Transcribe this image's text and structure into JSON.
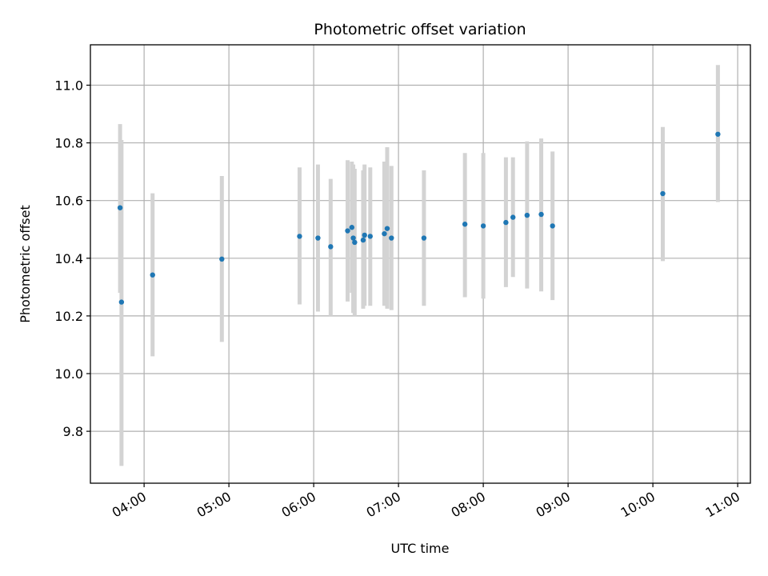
{
  "chart_data": {
    "type": "scatter",
    "title": "Photometric offset variation",
    "xlabel": "UTC time",
    "ylabel": "Photometric offset",
    "x_unit": "hours UTC",
    "xlim": [
      "03:22",
      "11:09"
    ],
    "ylim": [
      9.62,
      11.14
    ],
    "x_ticks": [
      {
        "t": "04:00",
        "label": "04:00"
      },
      {
        "t": "05:00",
        "label": "05:00"
      },
      {
        "t": "06:00",
        "label": "06:00"
      },
      {
        "t": "07:00",
        "label": "07:00"
      },
      {
        "t": "08:00",
        "label": "08:00"
      },
      {
        "t": "09:00",
        "label": "09:00"
      },
      {
        "t": "10:00",
        "label": "10:00"
      },
      {
        "t": "11:00",
        "label": "11:00"
      }
    ],
    "y_ticks": [
      {
        "v": 9.8,
        "label": "9.8"
      },
      {
        "v": 10.0,
        "label": "10.0"
      },
      {
        "v": 10.2,
        "label": "10.2"
      },
      {
        "v": 10.4,
        "label": "10.4"
      },
      {
        "v": 10.6,
        "label": "10.6"
      },
      {
        "v": 10.8,
        "label": "10.8"
      },
      {
        "v": 11.0,
        "label": "11.0"
      }
    ],
    "grid": true,
    "colors": {
      "point": "#1f77b4",
      "errorbar": "#d3d3d3",
      "grid": "#b0b0b0"
    },
    "points": [
      {
        "t": "03:43",
        "y": 10.575,
        "lo": 10.28,
        "hi": 10.865
      },
      {
        "t": "03:44",
        "y": 10.248,
        "lo": 9.68,
        "hi": 10.81
      },
      {
        "t": "04:06",
        "y": 10.342,
        "lo": 10.06,
        "hi": 10.625
      },
      {
        "t": "04:55",
        "y": 10.397,
        "lo": 10.11,
        "hi": 10.685
      },
      {
        "t": "05:50",
        "y": 10.476,
        "lo": 10.24,
        "hi": 10.715
      },
      {
        "t": "06:03",
        "y": 10.47,
        "lo": 10.215,
        "hi": 10.725
      },
      {
        "t": "06:12",
        "y": 10.44,
        "lo": 10.2,
        "hi": 10.675
      },
      {
        "t": "06:24",
        "y": 10.495,
        "lo": 10.25,
        "hi": 10.74
      },
      {
        "t": "06:27",
        "y": 10.507,
        "lo": 10.28,
        "hi": 10.735
      },
      {
        "t": "06:28",
        "y": 10.47,
        "lo": 10.21,
        "hi": 10.725
      },
      {
        "t": "06:29",
        "y": 10.455,
        "lo": 10.2,
        "hi": 10.71
      },
      {
        "t": "06:35",
        "y": 10.463,
        "lo": 10.225,
        "hi": 10.705
      },
      {
        "t": "06:36",
        "y": 10.48,
        "lo": 10.235,
        "hi": 10.725
      },
      {
        "t": "06:40",
        "y": 10.476,
        "lo": 10.235,
        "hi": 10.715
      },
      {
        "t": "06:50",
        "y": 10.485,
        "lo": 10.235,
        "hi": 10.735
      },
      {
        "t": "06:52",
        "y": 10.503,
        "lo": 10.225,
        "hi": 10.785
      },
      {
        "t": "06:55",
        "y": 10.47,
        "lo": 10.22,
        "hi": 10.72
      },
      {
        "t": "07:18",
        "y": 10.47,
        "lo": 10.235,
        "hi": 10.705
      },
      {
        "t": "07:47",
        "y": 10.518,
        "lo": 10.265,
        "hi": 10.765
      },
      {
        "t": "08:00",
        "y": 10.512,
        "lo": 10.26,
        "hi": 10.765
      },
      {
        "t": "08:16",
        "y": 10.524,
        "lo": 10.3,
        "hi": 10.75
      },
      {
        "t": "08:21",
        "y": 10.542,
        "lo": 10.335,
        "hi": 10.75
      },
      {
        "t": "08:31",
        "y": 10.549,
        "lo": 10.295,
        "hi": 10.805
      },
      {
        "t": "08:41",
        "y": 10.552,
        "lo": 10.285,
        "hi": 10.815
      },
      {
        "t": "08:49",
        "y": 10.512,
        "lo": 10.255,
        "hi": 10.77
      },
      {
        "t": "10:07",
        "y": 10.624,
        "lo": 10.39,
        "hi": 10.855
      },
      {
        "t": "10:46",
        "y": 10.83,
        "lo": 10.595,
        "hi": 11.07
      }
    ]
  }
}
